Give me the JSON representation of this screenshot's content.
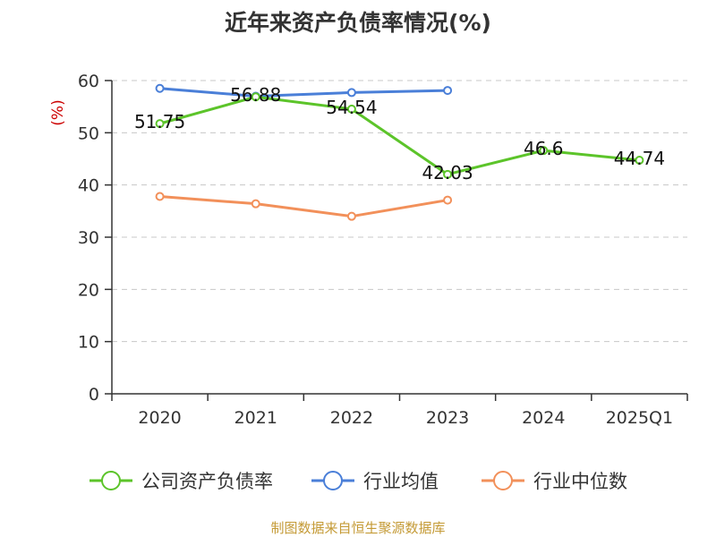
{
  "chart_data": {
    "type": "line",
    "title": "近年来资产负债率情况(%)",
    "ylabel": "(%)",
    "categories": [
      "2020",
      "2021",
      "2022",
      "2023",
      "2024",
      "2025Q1"
    ],
    "ylim": [
      0,
      60
    ],
    "yticks": [
      "0",
      "10",
      "20",
      "30",
      "40",
      "50",
      "60"
    ],
    "grid": true,
    "legend_position": "bottom",
    "series": [
      {
        "name": "公司资产负债率",
        "color": "#5cc42a",
        "values": [
          51.75,
          56.88,
          54.54,
          42.03,
          46.6,
          44.74
        ],
        "labels": [
          "51.75",
          "56.88",
          "54.54",
          "42.03",
          "46.6",
          "44.74"
        ]
      },
      {
        "name": "行业均值",
        "color": "#4a7fd8",
        "values": [
          58.5,
          57.0,
          57.7,
          58.1,
          null,
          null
        ]
      },
      {
        "name": "行业中位数",
        "color": "#f2905a",
        "values": [
          37.8,
          36.4,
          34.0,
          37.1,
          null,
          null
        ]
      }
    ],
    "source": "制图数据来自恒生聚源数据库"
  }
}
